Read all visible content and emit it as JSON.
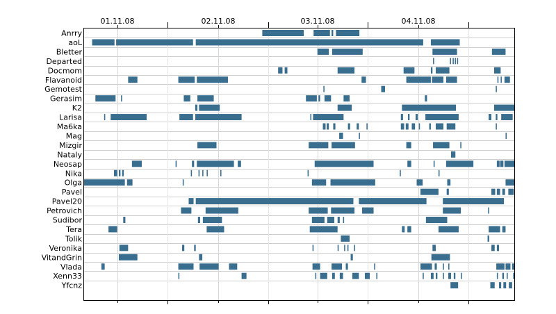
{
  "chart_data": {
    "type": "gantt",
    "x_axis": {
      "unit": "days",
      "tick_labels": [
        "01.11.08",
        "02.11.08",
        "03.11.08",
        "04.11.08"
      ],
      "major_ticks": [
        "01.11.08 00:00",
        "02.11.08 00:00",
        "03.11.08 00:00",
        "04.11.08 00:00"
      ],
      "minor_ticks": [
        "31.10.08 12:00",
        "01.11.08 12:00",
        "02.11.08 12:00",
        "03.11.08 12:00",
        "04.11.08 12:00"
      ],
      "range": [
        "31.10.08 17:50",
        "05.11.08 04:40"
      ]
    },
    "grid": true,
    "bar_color": "#3a6e8f",
    "rows": [
      {
        "name": "Anrry",
        "intervals": [
          [
            32.8,
            40.4
          ],
          [
            42.2,
            45.2
          ],
          [
            45.5,
            45.8
          ],
          [
            46.3,
            50.6
          ]
        ]
      },
      {
        "name": "aoL",
        "intervals": [
          [
            1.6,
            5.7
          ],
          [
            6.0,
            20.1
          ],
          [
            20.6,
            62.3
          ],
          [
            63.7,
            69.0
          ]
        ]
      },
      {
        "name": "Bletter",
        "intervals": [
          [
            42.9,
            45.0
          ],
          [
            45.6,
            51.2
          ],
          [
            64.0,
            68.5
          ],
          [
            74.9,
            77.4
          ]
        ]
      },
      {
        "name": "Departed",
        "intervals": [
          [
            64.1,
            64.3
          ],
          [
            67.2,
            67.4
          ],
          [
            67.7,
            67.9
          ],
          [
            68.1,
            68.3
          ],
          [
            68.5,
            68.7
          ]
        ]
      },
      {
        "name": "Docmom",
        "intervals": [
          [
            35.7,
            36.5
          ],
          [
            36.9,
            37.4
          ],
          [
            46.6,
            49.7
          ],
          [
            58.7,
            60.7
          ],
          [
            63.7,
            64.0
          ],
          [
            64.6,
            67.1
          ],
          [
            75.3,
            76.5
          ]
        ]
      },
      {
        "name": "Flavanoid",
        "intervals": [
          [
            8.2,
            9.9
          ],
          [
            17.4,
            20.4
          ],
          [
            20.8,
            26.5
          ],
          [
            51.0,
            51.8
          ],
          [
            59.2,
            63.7
          ],
          [
            63.9,
            66.0
          ],
          [
            66.5,
            68.5
          ],
          [
            75.9,
            76.1
          ],
          [
            76.5,
            76.7
          ],
          [
            77.2,
            78.2
          ]
        ]
      },
      {
        "name": "Gemotest",
        "intervals": [
          [
            44.0,
            44.2
          ],
          [
            54.6,
            55.3
          ],
          [
            75.6,
            75.8
          ]
        ]
      },
      {
        "name": "Gerasim",
        "intervals": [
          [
            2.2,
            5.9
          ],
          [
            6.9,
            7.1
          ],
          [
            18.4,
            19.6
          ],
          [
            20.9,
            23.9
          ],
          [
            40.8,
            42.8
          ],
          [
            43.1,
            43.4
          ],
          [
            44.2,
            45.4
          ],
          [
            47.7,
            48.8
          ],
          [
            62.6,
            63.0
          ]
        ]
      },
      {
        "name": "K2",
        "intervals": [
          [
            20.5,
            20.9
          ],
          [
            21.2,
            25.0
          ],
          [
            46.6,
            49.2
          ],
          [
            58.4,
            68.3
          ],
          [
            75.3,
            79.0
          ]
        ]
      },
      {
        "name": "Larisa",
        "intervals": [
          [
            3.8,
            4.0
          ],
          [
            5.0,
            11.6
          ],
          [
            17.6,
            20.1
          ],
          [
            20.5,
            29.0
          ],
          [
            41.6,
            41.8
          ],
          [
            42.1,
            47.7
          ],
          [
            58.2,
            58.6
          ],
          [
            59.5,
            59.8
          ],
          [
            60.9,
            61.3
          ],
          [
            62.7,
            68.8
          ],
          [
            74.3,
            74.8
          ],
          [
            75.6,
            75.9
          ],
          [
            76.6,
            78.7
          ]
        ]
      },
      {
        "name": "Ma6ka",
        "intervals": [
          [
            43.9,
            44.4
          ],
          [
            44.6,
            45.0
          ],
          [
            45.8,
            46.2
          ],
          [
            48.5,
            48.9
          ],
          [
            50.1,
            50.5
          ],
          [
            51.9,
            52.1
          ],
          [
            58.2,
            58.8
          ],
          [
            59.1,
            59.6
          ],
          [
            60.2,
            60.8
          ],
          [
            61.5,
            61.7
          ],
          [
            63.4,
            63.7
          ],
          [
            64.6,
            66.0
          ],
          [
            66.6,
            68.2
          ],
          [
            75.6,
            75.8
          ]
        ]
      },
      {
        "name": "Mag",
        "intervals": [
          [
            46.9,
            47.6
          ],
          [
            50.5,
            50.7
          ],
          [
            77.4,
            77.6
          ]
        ]
      },
      {
        "name": "Mizgir",
        "intervals": [
          [
            20.9,
            24.4
          ],
          [
            41.3,
            44.9
          ],
          [
            45.5,
            49.8
          ],
          [
            59.2,
            60.1
          ],
          [
            64.1,
            67.1
          ],
          [
            69.1,
            69.3
          ]
        ]
      },
      {
        "name": "Nataly",
        "intervals": [
          [
            67.4,
            68.2
          ]
        ]
      },
      {
        "name": "Neosap",
        "intervals": [
          [
            8.9,
            10.7
          ],
          [
            16.9,
            17.1
          ],
          [
            19.9,
            20.3
          ],
          [
            20.8,
            27.6
          ],
          [
            28.3,
            28.9
          ],
          [
            42.4,
            53.2
          ],
          [
            59.4,
            60.1
          ],
          [
            64.2,
            64.4
          ],
          [
            66.5,
            71.5
          ],
          [
            75.8,
            76.3
          ],
          [
            76.4,
            77.0
          ],
          [
            77.2,
            79.0
          ]
        ]
      },
      {
        "name": "Nika",
        "intervals": [
          [
            5.6,
            6.2
          ],
          [
            6.5,
            6.8
          ],
          [
            7.1,
            7.4
          ],
          [
            19.7,
            19.9
          ],
          [
            21.1,
            21.3
          ],
          [
            21.8,
            22.0
          ],
          [
            22.6,
            22.8
          ],
          [
            25.1,
            25.3
          ],
          [
            41.1,
            41.3
          ],
          [
            58.0,
            58.2
          ],
          [
            65.1,
            65.3
          ]
        ]
      },
      {
        "name": "Olga",
        "intervals": [
          [
            0.0,
            7.6
          ],
          [
            8.0,
            9.0
          ],
          [
            18.2,
            18.4
          ],
          [
            41.9,
            44.5
          ],
          [
            45.3,
            53.5
          ],
          [
            61.1,
            62.2
          ],
          [
            66.7,
            67.3
          ],
          [
            77.4,
            79.0
          ]
        ]
      },
      {
        "name": "Pavel",
        "intervals": [
          [
            61.8,
            65.1
          ],
          [
            66.6,
            67.0
          ],
          [
            74.8,
            75.5
          ],
          [
            75.8,
            76.4
          ],
          [
            76.8,
            77.3
          ],
          [
            77.9,
            78.9
          ]
        ]
      },
      {
        "name": "Pavel20",
        "intervals": [
          [
            19.3,
            20.2
          ],
          [
            20.6,
            49.5
          ],
          [
            50.5,
            62.9
          ],
          [
            65.9,
            77.1
          ]
        ]
      },
      {
        "name": "Petrovich",
        "intervals": [
          [
            17.9,
            19.8
          ],
          [
            22.4,
            28.4
          ],
          [
            41.3,
            44.8
          ],
          [
            45.4,
            49.7
          ],
          [
            51.1,
            53.2
          ],
          [
            65.9,
            69.2
          ],
          [
            74.2,
            74.4
          ]
        ]
      },
      {
        "name": "Sudibor",
        "intervals": [
          [
            7.3,
            7.7
          ],
          [
            21.0,
            21.4
          ],
          [
            21.9,
            25.4
          ],
          [
            41.9,
            44.2
          ],
          [
            44.7,
            46.0
          ],
          [
            46.6,
            47.0
          ],
          [
            47.6,
            47.8
          ],
          [
            62.8,
            66.7
          ]
        ]
      },
      {
        "name": "Tera",
        "intervals": [
          [
            4.6,
            6.2
          ],
          [
            22.6,
            25.8
          ],
          [
            41.5,
            46.6
          ],
          [
            58.4,
            58.9
          ],
          [
            59.4,
            60.1
          ],
          [
            65.1,
            68.8
          ],
          [
            74.3,
            76.4
          ],
          [
            76.8,
            77.4
          ]
        ]
      },
      {
        "name": "Tolik",
        "intervals": [
          [
            47.2,
            48.8
          ],
          [
            74.1,
            74.4
          ]
        ]
      },
      {
        "name": "Veronika",
        "intervals": [
          [
            6.6,
            8.2
          ],
          [
            18.1,
            18.5
          ],
          [
            20.3,
            20.6
          ],
          [
            42.0,
            42.2
          ],
          [
            46.6,
            46.8
          ],
          [
            47.8,
            48.0
          ],
          [
            48.4,
            48.6
          ],
          [
            49.6,
            49.8
          ],
          [
            64.0,
            64.6
          ],
          [
            74.8,
            75.4
          ],
          [
            75.8,
            76.2
          ]
        ]
      },
      {
        "name": "VitandGrin",
        "intervals": [
          [
            6.5,
            9.9
          ],
          [
            21.2,
            21.8
          ],
          [
            49.0,
            49.4
          ],
          [
            63.8,
            67.2
          ]
        ]
      },
      {
        "name": "Vlada",
        "intervals": [
          [
            3.3,
            3.9
          ],
          [
            17.4,
            20.2
          ],
          [
            21.3,
            24.8
          ],
          [
            26.7,
            28.2
          ],
          [
            42.0,
            43.4
          ],
          [
            45.5,
            47.4
          ],
          [
            48.1,
            48.5
          ],
          [
            53.3,
            53.5
          ],
          [
            61.8,
            63.9
          ],
          [
            64.4,
            64.8
          ],
          [
            65.9,
            66.1
          ],
          [
            66.9,
            67.1
          ],
          [
            75.7,
            77.2
          ],
          [
            77.4,
            78.3
          ],
          [
            78.6,
            79.0
          ]
        ]
      },
      {
        "name": "Xenn33",
        "intervals": [
          [
            17.4,
            17.6
          ],
          [
            29.0,
            29.9
          ],
          [
            42.5,
            42.7
          ],
          [
            43.4,
            44.7
          ],
          [
            45.6,
            46.1
          ],
          [
            47.0,
            47.6
          ],
          [
            49.3,
            50.5
          ],
          [
            51.6,
            52.5
          ],
          [
            53.7,
            53.9
          ],
          [
            62.2,
            62.4
          ],
          [
            63.7,
            64.2
          ],
          [
            64.6,
            64.9
          ],
          [
            65.9,
            66.1
          ],
          [
            66.9,
            67.4
          ],
          [
            67.9,
            68.2
          ],
          [
            69.2,
            69.4
          ],
          [
            75.8,
            76.0
          ],
          [
            76.8,
            77.1
          ],
          [
            77.6,
            77.8
          ],
          [
            78.8,
            79.0
          ]
        ]
      },
      {
        "name": "Yfcnz",
        "intervals": [
          [
            67.3,
            68.7
          ],
          [
            74.6,
            75.4
          ],
          [
            76.2,
            76.6
          ],
          [
            77.0,
            77.5
          ],
          [
            78.0,
            78.6
          ]
        ]
      }
    ]
  }
}
